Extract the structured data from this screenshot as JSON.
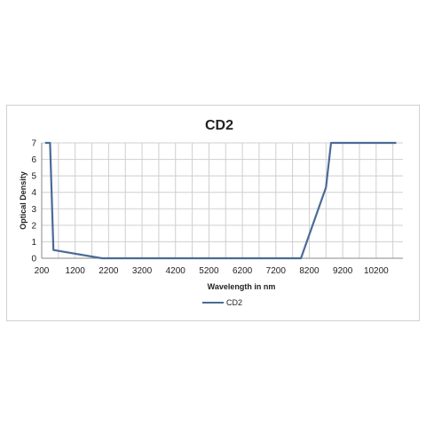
{
  "chart_data": {
    "type": "line",
    "title": "CD2",
    "xlabel": "Wavelength in nm",
    "ylabel": "Optical Density",
    "xlim": [
      200,
      11000
    ],
    "ylim": [
      0,
      7
    ],
    "x_ticks": [
      "200",
      "1200",
      "2200",
      "3200",
      "4200",
      "5200",
      "6200",
      "7200",
      "8200",
      "9200",
      "10200"
    ],
    "y_ticks": [
      "0",
      "1",
      "2",
      "3",
      "4",
      "5",
      "6",
      "7"
    ],
    "grid": true,
    "legend_position": "bottom",
    "series": [
      {
        "name": "CD2",
        "color": "#4a6b96",
        "x": [
          300,
          450,
          550,
          2000,
          7950,
          8700,
          8850,
          10800
        ],
        "y": [
          7,
          7,
          0.5,
          0,
          0,
          4.3,
          7,
          7
        ]
      }
    ]
  }
}
